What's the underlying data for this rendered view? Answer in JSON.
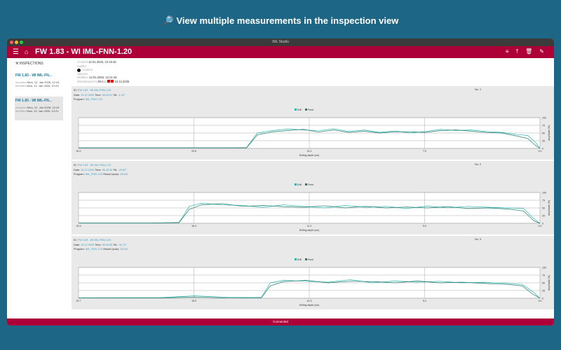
{
  "headline": "🔎 View multiple measurements in the inspection view",
  "window_title": "IML Studio",
  "header": {
    "title": "FW 1.83 - WI IML-FNN-1.20",
    "icons": [
      "menu-icon",
      "home-icon",
      "sort-icon",
      "upload-icon",
      "trash-icon",
      "edit-icon"
    ]
  },
  "sidebar": {
    "heading": "INSPECTIONS",
    "items": [
      {
        "name": "FW 1.83 - WI IML-FN...",
        "imported_label": "Imported",
        "imported": "Mon, 12. Jan 2026, 12:24",
        "modified_label": "Modified",
        "modified": "Mon, 12. Jan 2026, 12:24"
      },
      {
        "name": "FW 1.83 - WI IML-FN...",
        "imported_label": "Imported",
        "imported": "Mon, 12. Jan 2026, 12:19",
        "modified_label": "Modified",
        "modified": "Mon, 12. Jan 2026, 12:21"
      }
    ]
  },
  "info": {
    "created_label": "Created",
    "created": "12.01.2026, 12:19:46",
    "auditor_label": "Auditor",
    "location_label": "Location",
    "species_label": "Species",
    "modified_label": "Modified",
    "modified": "12.01.2026, 12:21:46",
    "wi_label": "WoodInspector",
    "wi": "ZK4",
    "wi_date": "10.12.2025"
  },
  "colors": {
    "accent": "#ad0038",
    "drill": "#2bb5b0",
    "feed": "#1f7a6a",
    "background": "#1e6685"
  },
  "legend": {
    "drill": "Drill",
    "feed": "Feed"
  },
  "xlabel": "Drilling depth (cm)",
  "ylabel": "Amplitude (%)",
  "footer": "Connected",
  "measurements": [
    {
      "id": "FW 1.83 - WI IML-FNN-1.20",
      "date": "10.12.2025",
      "time": "05:43:01",
      "tilt": "-1.20°",
      "program": "IML_FNN 1.20",
      "result": "",
      "no": "No: 1"
    },
    {
      "id": "FW 1.83 - WI IML-FNN-1.20",
      "date": "10.12.2025",
      "time": "05:43:28",
      "tilt": "-26.50°",
      "program": "IML_FNN 1.20",
      "result": "ZK142",
      "no": "No: 2"
    },
    {
      "id": "FW 1.83 - WI IML-FNN-1.20",
      "date": "10.12.2025",
      "time": "05:43:58",
      "tilt": "-31.70°",
      "program": "IML_FNN 1.20",
      "result": "ZK142",
      "no": "No: 3"
    }
  ],
  "chart_data": [
    {
      "type": "line",
      "xlim": [
        30.2,
        0
      ],
      "ylim": [
        0,
        100
      ],
      "xticks": [
        "30.2",
        "22.6",
        "15.1",
        "7.5",
        "0.0"
      ],
      "yticks": [
        "100",
        "75",
        "50",
        "25",
        "0"
      ],
      "legend": "top-center",
      "grid": true,
      "x": [
        30.2,
        24,
        20,
        19.2,
        18.5,
        17.5,
        16.5,
        15.5,
        14.5,
        13.5,
        12.5,
        11.5,
        10.5,
        9.5,
        8.5,
        7.5,
        6.5,
        5.5,
        4.5,
        3.5,
        2.5,
        1.5,
        0.8,
        0.3,
        0
      ],
      "series": [
        {
          "name": "Drill",
          "values": [
            2,
            2,
            2,
            3,
            50,
            58,
            63,
            60,
            57,
            64,
            55,
            60,
            52,
            57,
            50,
            55,
            62,
            58,
            60,
            55,
            52,
            45,
            42,
            20,
            0
          ]
        },
        {
          "name": "Feed",
          "values": [
            2,
            2,
            2,
            2,
            44,
            54,
            58,
            62,
            53,
            60,
            52,
            56,
            50,
            54,
            54,
            52,
            58,
            60,
            56,
            52,
            50,
            40,
            32,
            10,
            0
          ]
        }
      ]
    },
    {
      "type": "line",
      "xlim": [
        22.5,
        0
      ],
      "ylim": [
        0,
        100
      ],
      "xticks": [
        "22.5",
        "16.9",
        "11.2",
        "5.6",
        "0.0"
      ],
      "yticks": [
        "100",
        "75",
        "50",
        "25",
        "0"
      ],
      "legend": "top-center",
      "grid": true,
      "x": [
        22.5,
        19,
        17.6,
        17.1,
        16.5,
        15.5,
        14.5,
        13.5,
        12.5,
        11.5,
        10.5,
        9.5,
        8.5,
        7.5,
        6.5,
        5.5,
        4.5,
        3.5,
        2.5,
        1.5,
        0.8,
        0.3,
        0
      ],
      "series": [
        {
          "name": "Drill",
          "values": [
            1,
            1,
            3,
            55,
            65,
            60,
            58,
            52,
            60,
            55,
            50,
            58,
            52,
            55,
            48,
            56,
            50,
            55,
            52,
            50,
            48,
            15,
            0
          ]
        },
        {
          "name": "Feed",
          "values": [
            1,
            1,
            2,
            45,
            60,
            64,
            55,
            58,
            54,
            52,
            57,
            50,
            55,
            50,
            53,
            50,
            54,
            48,
            50,
            46,
            40,
            8,
            0
          ]
        }
      ]
    },
    {
      "type": "line",
      "xlim": [
        20.7,
        0
      ],
      "ylim": [
        0,
        100
      ],
      "xticks": [
        "20.7",
        "15.5",
        "10.3",
        "5.2",
        "0.0"
      ],
      "yticks": [
        "100",
        "75",
        "50",
        "25",
        "0"
      ],
      "legend": "top-center",
      "grid": true,
      "x": [
        20.7,
        17,
        15.5,
        14,
        12.5,
        12.1,
        11.5,
        10.5,
        9.5,
        8.5,
        7.5,
        6.5,
        5.5,
        4.5,
        3.5,
        2.5,
        1.5,
        0.8,
        0.3,
        0
      ],
      "series": [
        {
          "name": "Drill",
          "values": [
            1,
            2,
            8,
            3,
            2,
            50,
            58,
            55,
            52,
            60,
            50,
            56,
            52,
            55,
            50,
            52,
            48,
            45,
            20,
            0
          ]
        },
        {
          "name": "Feed",
          "values": [
            1,
            1,
            4,
            1,
            1,
            40,
            54,
            58,
            50,
            55,
            54,
            50,
            56,
            50,
            52,
            48,
            45,
            40,
            12,
            0
          ]
        }
      ]
    }
  ]
}
